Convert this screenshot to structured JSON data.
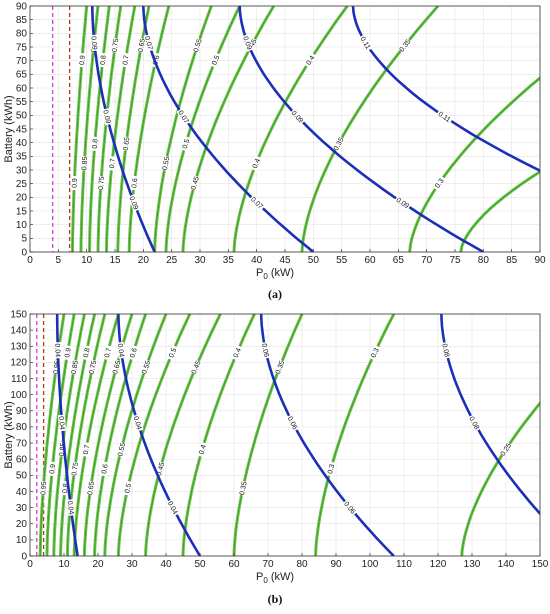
{
  "chart_data": [
    {
      "panel_label": "(a)",
      "type": "contour",
      "xlabel": "P",
      "xlabel_sub": "0",
      "xlabel_unit": " (kW)",
      "ylabel": "Battery (kWh)",
      "xlim": [
        0,
        90
      ],
      "ylim": [
        0,
        90
      ],
      "xticks": [
        0,
        5,
        10,
        15,
        20,
        25,
        30,
        35,
        40,
        45,
        50,
        55,
        60,
        65,
        70,
        75,
        80,
        85,
        90
      ],
      "yticks": [
        0,
        5,
        10,
        15,
        20,
        25,
        30,
        35,
        40,
        45,
        50,
        55,
        60,
        65,
        70,
        75,
        80,
        85,
        90
      ],
      "vlines": [
        {
          "x": 4,
          "color": "#d63cd6"
        },
        {
          "x": 7,
          "color": "#b33a1a"
        }
      ],
      "green_contours": [
        {
          "label": "0.9",
          "x0": 7.5,
          "xtop": 10
        },
        {
          "label": "0.85",
          "x0": 9,
          "xtop": 12
        },
        {
          "label": "0.8",
          "x0": 10.5,
          "xtop": 14
        },
        {
          "label": "0.75",
          "x0": 12,
          "xtop": 16
        },
        {
          "label": "0.7",
          "x0": 13.5,
          "xtop": 18.5
        },
        {
          "label": "0.65",
          "x0": 15.5,
          "xtop": 21
        },
        {
          "label": "0.6",
          "x0": 17.5,
          "xtop": 24.5
        },
        {
          "label": "0.55",
          "x0": 22,
          "xtop": 32
        },
        {
          "label": "0.5",
          "x0": 24,
          "xtop": 37
        },
        {
          "label": "0.45",
          "x0": 27,
          "xtop": 43
        },
        {
          "label": "0.4",
          "x0": 36,
          "xtop": 56
        },
        {
          "label": "0.35",
          "x0": 48,
          "xtop": 72
        },
        {
          "label": "0.3",
          "x0": 67,
          "xtop": 107
        },
        {
          "label": "0.25",
          "x0": 76,
          "xtop": 160
        }
      ],
      "blue_contours": [
        {
          "label": "0.09",
          "x0": 22,
          "xtop": 11
        },
        {
          "label": "0.07",
          "x0": 50,
          "xtop": 20
        },
        {
          "label": "0.09",
          "x0": 80,
          "xtop": 37
        },
        {
          "label": "0.11",
          "x0": 125,
          "xtop": 57
        }
      ]
    },
    {
      "panel_label": "(b)",
      "type": "contour",
      "xlabel": "P",
      "xlabel_sub": "0",
      "xlabel_unit": " (kW)",
      "ylabel": "Battery (kWh)",
      "xlim": [
        0,
        150
      ],
      "ylim": [
        0,
        150
      ],
      "xticks": [
        0,
        10,
        20,
        30,
        40,
        50,
        60,
        70,
        80,
        90,
        100,
        110,
        120,
        130,
        140,
        150
      ],
      "yticks": [
        0,
        10,
        20,
        30,
        40,
        50,
        60,
        70,
        80,
        90,
        100,
        110,
        120,
        130,
        140,
        150
      ],
      "vlines": [
        {
          "x": 2,
          "color": "#d63cd6"
        },
        {
          "x": 4,
          "color": "#b33a1a"
        }
      ],
      "green_contours": [
        {
          "label": "0.95",
          "x0": 3,
          "xtop": 10
        },
        {
          "label": "0.9",
          "x0": 5,
          "xtop": 13
        },
        {
          "label": "0.85",
          "x0": 7,
          "xtop": 16
        },
        {
          "label": "0.8",
          "x0": 9,
          "xtop": 19
        },
        {
          "label": "0.75",
          "x0": 11,
          "xtop": 22
        },
        {
          "label": "0.7",
          "x0": 13,
          "xtop": 26
        },
        {
          "label": "0.65",
          "x0": 16,
          "xtop": 30
        },
        {
          "label": "0.6",
          "x0": 19,
          "xtop": 34
        },
        {
          "label": "0.55",
          "x0": 22,
          "xtop": 40
        },
        {
          "label": "0.5",
          "x0": 26,
          "xtop": 47
        },
        {
          "label": "0.45",
          "x0": 34,
          "xtop": 56
        },
        {
          "label": "0.4",
          "x0": 45,
          "xtop": 66
        },
        {
          "label": "0.35",
          "x0": 60,
          "xtop": 80
        },
        {
          "label": "0.3",
          "x0": 84,
          "xtop": 107
        },
        {
          "label": "0.25",
          "x0": 127,
          "xtop": 175
        }
      ],
      "blue_contours": [
        {
          "label": "0.04",
          "x0": 14,
          "xtop": 8
        },
        {
          "label": "0.04",
          "x0": 50,
          "xtop": 26
        },
        {
          "label": "0.06",
          "x0": 107,
          "xtop": 68
        },
        {
          "label": "0.08",
          "x0": 162,
          "xtop": 121
        }
      ]
    }
  ]
}
